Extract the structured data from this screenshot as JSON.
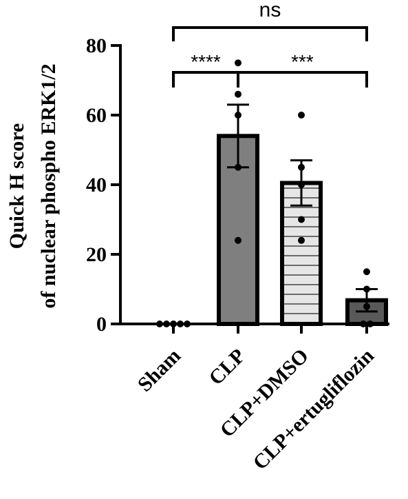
{
  "chart_data": {
    "type": "bar",
    "title": "",
    "ylabel_line1": "Quick H score",
    "ylabel_line2": "of nuclear phospho ERK1/2",
    "xlabel": "",
    "ylim": [
      0,
      80
    ],
    "yticks": [
      0,
      20,
      40,
      60,
      80
    ],
    "categories": [
      "Sham",
      "CLP",
      "CLP+DMSO",
      "CLP+ertugliflozin"
    ],
    "values": [
      0,
      54,
      40.5,
      6.8
    ],
    "errors": [
      0,
      9,
      6.5,
      3.2
    ],
    "points": [
      [
        0,
        0,
        0,
        0,
        0
      ],
      [
        75,
        66,
        60,
        45,
        24
      ],
      [
        60,
        45,
        40,
        30,
        24
      ],
      [
        15,
        10,
        5,
        0,
        0
      ]
    ],
    "bar_colors": [
      "#7f7f7f",
      "#7f7f7f",
      "#dcdcdc",
      "#595959"
    ],
    "bar_patterns": [
      "solid",
      "solid",
      "horizontal-lines",
      "solid"
    ],
    "significance": [
      {
        "from": 1,
        "to": 0,
        "label": "****",
        "level": 1
      },
      {
        "from": 1,
        "to": 3,
        "label": "***",
        "level": 1
      },
      {
        "from": 0,
        "to": 3,
        "label": "ns",
        "level": 2
      }
    ]
  }
}
